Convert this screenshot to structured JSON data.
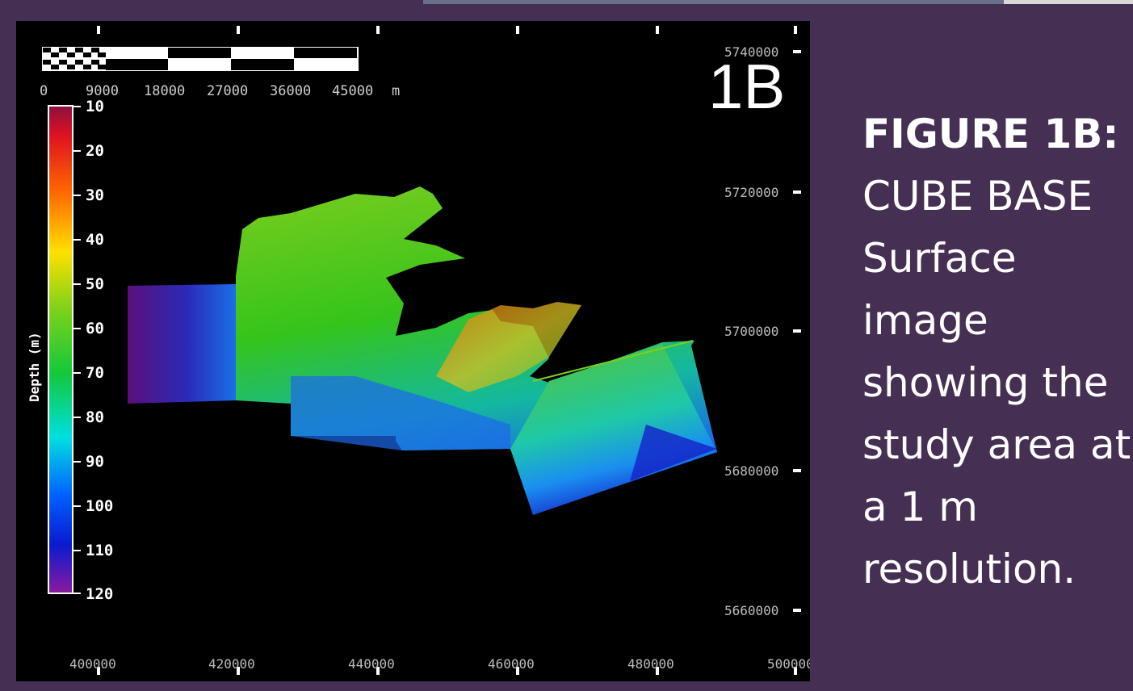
{
  "panel_label": "1B",
  "scale_bar": {
    "labels": [
      "0",
      "9000",
      "18000",
      "27000",
      "36000",
      "45000"
    ],
    "unit": "m"
  },
  "colorbar": {
    "label": "Depth (m)",
    "ticks": [
      "10",
      "20",
      "30",
      "40",
      "50",
      "60",
      "70",
      "80",
      "90",
      "100",
      "110",
      "120"
    ]
  },
  "axes": {
    "x_ticks": [
      "400000",
      "420000",
      "440000",
      "460000",
      "480000",
      "500000"
    ],
    "y_ticks": [
      "5740000",
      "5720000",
      "5700000",
      "5680000",
      "5660000"
    ]
  },
  "caption": {
    "title": "FIGURE 1B:",
    "lines": [
      "CUBE BASE",
      "Surface",
      "image",
      "showing the",
      "study area at",
      "a 1 m",
      "resolution."
    ]
  },
  "colors": {
    "slide_background": "#452f53",
    "map_background": "#000000"
  }
}
